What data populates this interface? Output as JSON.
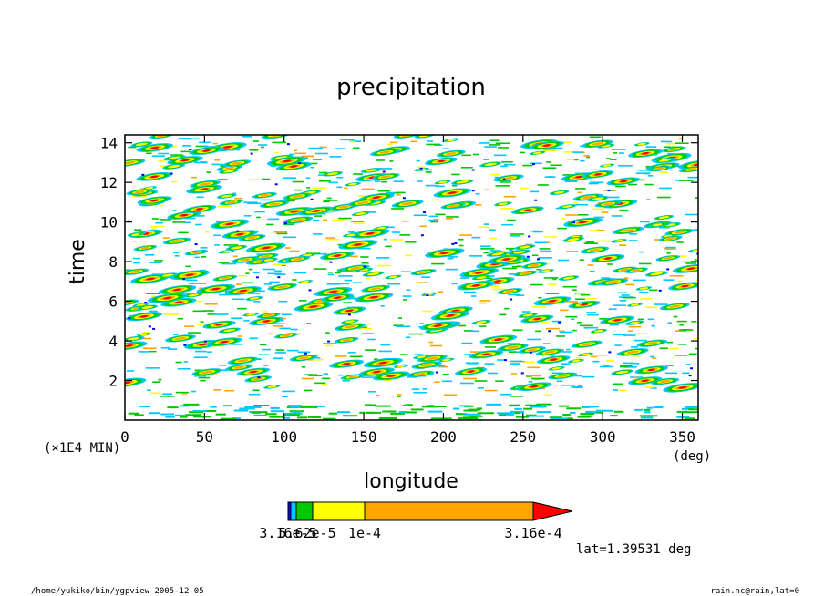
{
  "chart_data": {
    "type": "heatmap",
    "title": "precipitation",
    "xlabel": "longitude",
    "ylabel": "time",
    "x_unit": "(deg)",
    "y_unit": "(×1E4 MIN)",
    "xlim": [
      0,
      360
    ],
    "ylim": [
      0,
      14.4
    ],
    "x_ticks": [
      0,
      50,
      100,
      150,
      200,
      250,
      300,
      350
    ],
    "y_ticks": [
      2,
      4,
      6,
      8,
      10,
      12,
      14
    ],
    "colorbar": {
      "levels": [
        3.16e-05,
        5.62e-05,
        0.0001,
        0.000316
      ],
      "labels": [
        "3.16e-5",
        "5.62e-5",
        "1e-4",
        "3.16e-4"
      ],
      "colors": [
        "#0000ff",
        "#00c8ff",
        "#00c800",
        "#ffff00",
        "#ffa500",
        "#ff0000"
      ],
      "extend": "max"
    },
    "annotation": "lat=1.39531 deg"
  },
  "footer": {
    "left": "/home/yukiko/bin/ygpview  2005-12-05",
    "right": "rain.nc@rain,lat=0"
  },
  "colors": {
    "blue": "#0000ff",
    "cyan": "#00c8ff",
    "green": "#00c800",
    "yellow": "#ffff00",
    "orange": "#ffa500",
    "red": "#ff0000"
  }
}
